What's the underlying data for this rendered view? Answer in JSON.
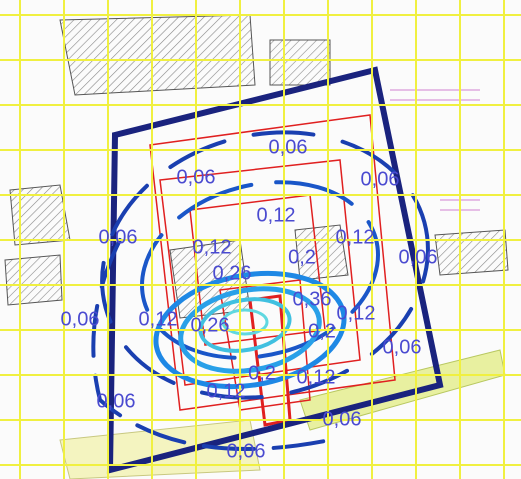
{
  "contour_labels": [
    "0,06",
    "0,06",
    "0,06",
    "0,12",
    "0,06",
    "0,12",
    "0,06",
    "0,12",
    "0,2",
    "0,26",
    "0,36",
    "0,06",
    "0,12",
    "0,26",
    "0,12",
    "0,2",
    "0,06",
    "0,2",
    "0,12",
    "0,12",
    "0,06",
    "0,06",
    "0,06"
  ]
}
